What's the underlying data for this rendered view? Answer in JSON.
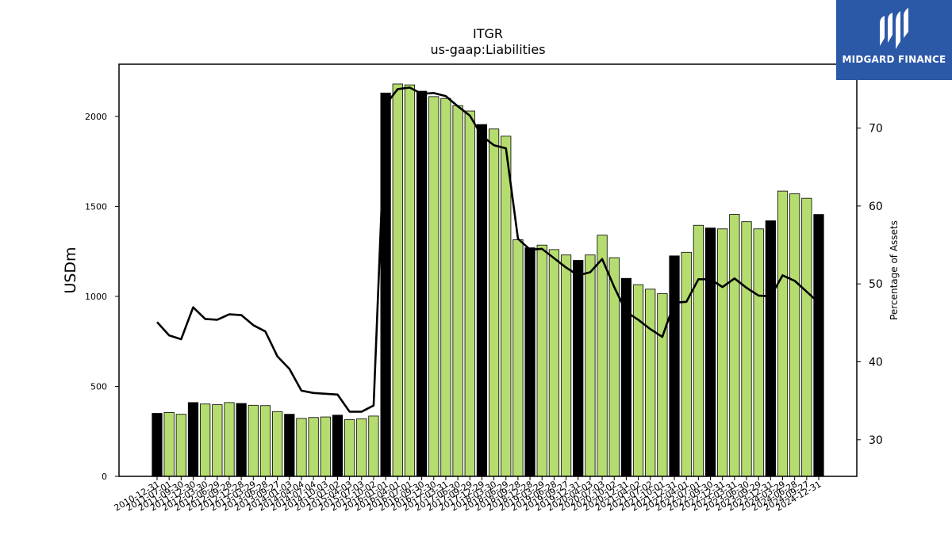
{
  "chart_data": {
    "type": "bar",
    "title": "ITGR",
    "subtitle": "us-gaap:Liabilities",
    "ylabel": "USDm",
    "y2label": "Percentage of Assets",
    "ylim": [
      0,
      2290
    ],
    "y2lim": [
      25.3,
      78.2
    ],
    "yticks": [
      0,
      500,
      1000,
      1500,
      2000
    ],
    "y2ticks": [
      30,
      40,
      50,
      60,
      70
    ],
    "grid": false,
    "colors": {
      "bar_annual": "#000000",
      "bar_quarter": "#b5dc6e",
      "bar_edge": "#000000",
      "line": "#000000"
    },
    "categories": [
      "2010-12-31",
      "2011-07-01",
      "2011-09-30",
      "2011-12-30",
      "2012-03-30",
      "2012-06-29",
      "2012-09-28",
      "2012-12-28",
      "2013-03-29",
      "2013-06-28",
      "2013-09-27",
      "2014-01-03",
      "2014-04-04",
      "2014-07-04",
      "2014-10-03",
      "2015-01-02",
      "2015-04-03",
      "2015-07-03",
      "2015-10-02",
      "2016-01-01",
      "2016-04-01",
      "2016-07-01",
      "2016-09-30",
      "2016-12-30",
      "2017-03-31",
      "2017-06-30",
      "2017-09-29",
      "2017-12-29",
      "2018-03-30",
      "2018-06-29",
      "2018-09-28",
      "2018-12-28",
      "2019-03-29",
      "2019-06-28",
      "2019-09-27",
      "2019-12-31",
      "2020-04-03",
      "2020-07-03",
      "2020-10-02",
      "2020-12-31",
      "2021-04-02",
      "2021-07-02",
      "2021-10-01",
      "2021-12-31",
      "2022-04-01",
      "2022-07-01",
      "2022-09-30",
      "2022-12-31",
      "2023-03-31",
      "2023-06-30",
      "2023-09-29",
      "2023-12-31",
      "2024-03-29",
      "2024-06-28",
      "2024-09-27",
      "2024-12-31"
    ],
    "series": [
      {
        "type": "bar",
        "values": [
          350,
          355,
          345,
          410,
          402,
          398,
          410,
          405,
          395,
          393,
          360,
          345,
          322,
          327,
          330,
          340,
          315,
          320,
          335,
          2130,
          2180,
          2175,
          2140,
          2110,
          2100,
          2060,
          2030,
          1955,
          1930,
          1890,
          1315,
          1270,
          1285,
          1260,
          1230,
          1200,
          1230,
          1340,
          1215,
          1100,
          1065,
          1040,
          1015,
          1225,
          1245,
          1395,
          1380,
          1375,
          1455,
          1415,
          1375,
          1420,
          1585,
          1570,
          1545,
          1455
        ],
        "annual": [
          true,
          false,
          false,
          true,
          false,
          false,
          false,
          true,
          false,
          false,
          false,
          true,
          false,
          false,
          false,
          true,
          false,
          false,
          false,
          true,
          false,
          false,
          true,
          false,
          false,
          false,
          false,
          true,
          false,
          false,
          false,
          true,
          false,
          false,
          false,
          true,
          false,
          false,
          false,
          true,
          false,
          false,
          false,
          true,
          false,
          false,
          true,
          false,
          false,
          false,
          false,
          true,
          false,
          false,
          false,
          true
        ]
      },
      {
        "type": "line",
        "axis": "right",
        "values": [
          45.1,
          43.4,
          42.9,
          47.0,
          45.5,
          45.4,
          46.1,
          46.0,
          44.7,
          43.9,
          40.7,
          39.1,
          36.3,
          36.0,
          35.9,
          35.8,
          33.6,
          33.6,
          34.4,
          73.0,
          75.0,
          75.2,
          74.4,
          74.5,
          74.1,
          72.8,
          71.6,
          69.0,
          67.8,
          67.4,
          55.8,
          54.4,
          54.5,
          53.3,
          52.1,
          51.1,
          51.5,
          53.2,
          49.6,
          46.4,
          45.4,
          44.2,
          43.2,
          47.6,
          47.7,
          50.6,
          50.6,
          49.6,
          50.7,
          49.5,
          48.5,
          48.4,
          51.1,
          50.4,
          49.0,
          47.6
        ]
      }
    ]
  },
  "logo": {
    "text": "MIDGARD FINANCE"
  }
}
